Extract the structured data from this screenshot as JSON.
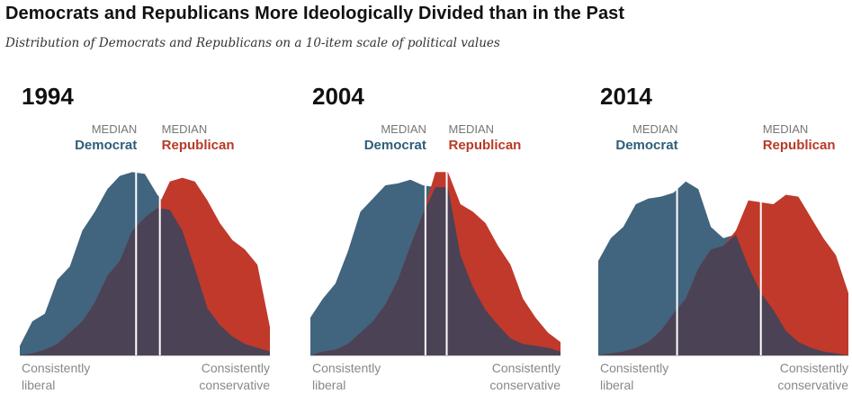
{
  "title": "Democrats and Republicans More Ideologically Divided than in the Past",
  "subtitle": "Distribution of Democrats and Republicans on a 10-item scale of political values",
  "median_caption": "MEDIAN",
  "dem_label": "Democrat",
  "rep_label": "Republican",
  "axis_left_line1": "Consistently",
  "axis_left_line2": "liberal",
  "axis_right_line1": "Consistently",
  "axis_right_line2": "conservative",
  "colors": {
    "democrat": "#41647f",
    "republican": "#c0392b",
    "overlap": "#4b4255"
  },
  "chart_data": [
    {
      "type": "area",
      "year": "1994",
      "x": [
        -10,
        -9,
        -8,
        -7,
        -6,
        -5,
        -4,
        -3,
        -2,
        -1,
        0,
        1,
        2,
        3,
        4,
        5,
        6,
        7,
        8,
        9,
        10
      ],
      "series": [
        {
          "name": "Democrat",
          "values": [
            0.05,
            0.18,
            0.22,
            0.4,
            0.47,
            0.66,
            0.76,
            0.88,
            0.95,
            0.97,
            0.96,
            0.85,
            0.77,
            0.66,
            0.46,
            0.25,
            0.16,
            0.1,
            0.06,
            0.04,
            0.02
          ]
        },
        {
          "name": "Republican",
          "values": [
            0.0,
            0.01,
            0.03,
            0.06,
            0.12,
            0.18,
            0.28,
            0.42,
            0.5,
            0.66,
            0.73,
            0.78,
            0.92,
            0.94,
            0.92,
            0.82,
            0.7,
            0.61,
            0.56,
            0.48,
            0.15
          ]
        }
      ],
      "median_democrat": -0.7,
      "median_republican": 1.2,
      "ylim": [
        0,
        1
      ]
    },
    {
      "type": "area",
      "year": "2004",
      "x": [
        -10,
        -9,
        -8,
        -7,
        -6,
        -5,
        -4,
        -3,
        -2,
        -1,
        0,
        1,
        2,
        3,
        4,
        5,
        6,
        7,
        8,
        9,
        10
      ],
      "series": [
        {
          "name": "Democrat",
          "values": [
            0.2,
            0.3,
            0.38,
            0.55,
            0.76,
            0.83,
            0.9,
            0.91,
            0.93,
            0.9,
            0.89,
            0.89,
            0.53,
            0.36,
            0.24,
            0.16,
            0.09,
            0.06,
            0.05,
            0.04,
            0.02
          ]
        },
        {
          "name": "Republican",
          "values": [
            0.0,
            0.02,
            0.03,
            0.06,
            0.12,
            0.18,
            0.27,
            0.4,
            0.58,
            0.75,
            0.97,
            0.97,
            0.8,
            0.76,
            0.7,
            0.58,
            0.48,
            0.3,
            0.2,
            0.12,
            0.07
          ]
        }
      ],
      "median_democrat": -0.8,
      "median_republican": 0.9,
      "ylim": [
        0,
        1
      ]
    },
    {
      "type": "area",
      "year": "2014",
      "x": [
        -10,
        -9,
        -8,
        -7,
        -6,
        -5,
        -4,
        -3,
        -2,
        -1,
        0,
        1,
        2,
        3,
        4,
        5,
        6,
        7,
        8,
        9,
        10
      ],
      "series": [
        {
          "name": "Democrat",
          "values": [
            0.5,
            0.62,
            0.68,
            0.8,
            0.83,
            0.84,
            0.86,
            0.92,
            0.88,
            0.68,
            0.62,
            0.64,
            0.47,
            0.33,
            0.24,
            0.13,
            0.07,
            0.04,
            0.02,
            0.01,
            0.0
          ]
        },
        {
          "name": "Republican",
          "values": [
            0.0,
            0.01,
            0.02,
            0.04,
            0.07,
            0.13,
            0.22,
            0.3,
            0.46,
            0.56,
            0.58,
            0.66,
            0.82,
            0.81,
            0.8,
            0.85,
            0.84,
            0.73,
            0.62,
            0.53,
            0.33
          ]
        }
      ],
      "median_democrat": -3.7,
      "median_republican": 3.0,
      "ylim": [
        0,
        1
      ]
    }
  ]
}
